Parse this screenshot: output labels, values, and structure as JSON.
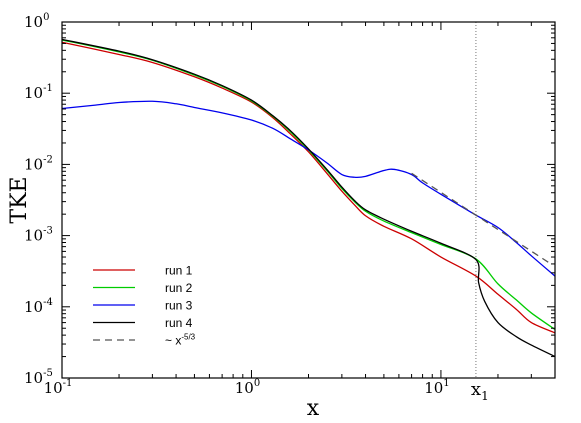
{
  "chart_data": {
    "type": "line",
    "title": "",
    "xlabel": "x",
    "ylabel": "TKE",
    "xscale": "log",
    "yscale": "log",
    "xlim": [
      0.1,
      40
    ],
    "ylim": [
      1e-05,
      1
    ],
    "grid": false,
    "legend_position": "bottom-left",
    "x_ticks": [
      {
        "value": 0.1,
        "base": "10",
        "exp": "-1"
      },
      {
        "value": 1,
        "base": "10",
        "exp": "0"
      },
      {
        "value": 10,
        "base": "10",
        "exp": "1"
      }
    ],
    "y_ticks": [
      {
        "value": 1,
        "base": "10",
        "exp": "0"
      },
      {
        "value": 0.1,
        "base": "10",
        "exp": "-1"
      },
      {
        "value": 0.01,
        "base": "10",
        "exp": "-2"
      },
      {
        "value": 0.001,
        "base": "10",
        "exp": "-3"
      },
      {
        "value": 0.0001,
        "base": "10",
        "exp": "-4"
      },
      {
        "value": 1e-05,
        "base": "10",
        "exp": "-5"
      }
    ],
    "annotations": [
      {
        "text": "x",
        "subscript": "1",
        "x": 15.3
      }
    ],
    "series": [
      {
        "name": "run 1",
        "color": "#cc0000",
        "dash": "solid",
        "points": [
          [
            0.1,
            0.52
          ],
          [
            0.2,
            0.35
          ],
          [
            0.3,
            0.27
          ],
          [
            0.5,
            0.17
          ],
          [
            0.7,
            0.118
          ],
          [
            1.0,
            0.075
          ],
          [
            1.3,
            0.045
          ],
          [
            1.6,
            0.027
          ],
          [
            2.0,
            0.015
          ],
          [
            2.5,
            0.0075
          ],
          [
            3.0,
            0.0042
          ],
          [
            3.5,
            0.0027
          ],
          [
            4.0,
            0.0019
          ],
          [
            5.0,
            0.00135
          ],
          [
            7.0,
            0.0009
          ],
          [
            10.0,
            0.0005
          ],
          [
            15.3,
            0.00027
          ],
          [
            20.0,
            0.00015
          ],
          [
            25.0,
            9.2e-05
          ],
          [
            30.0,
            6e-05
          ],
          [
            40.0,
            4.3e-05
          ]
        ]
      },
      {
        "name": "run 2",
        "color": "#00cc00",
        "dash": "solid",
        "points": [
          [
            0.1,
            0.56
          ],
          [
            0.2,
            0.38
          ],
          [
            0.3,
            0.29
          ],
          [
            0.5,
            0.18
          ],
          [
            0.7,
            0.125
          ],
          [
            1.0,
            0.078
          ],
          [
            1.3,
            0.047
          ],
          [
            1.6,
            0.029
          ],
          [
            2.0,
            0.016
          ],
          [
            2.5,
            0.0082
          ],
          [
            3.0,
            0.0046
          ],
          [
            3.5,
            0.003
          ],
          [
            4.0,
            0.0022
          ],
          [
            5.0,
            0.0016
          ],
          [
            7.0,
            0.0011
          ],
          [
            10.0,
            0.00075
          ],
          [
            15.3,
            0.00047
          ],
          [
            20.0,
            0.00021
          ],
          [
            25.0,
            0.000125
          ],
          [
            30.0,
            8.2e-05
          ],
          [
            40.0,
            4.8e-05
          ]
        ]
      },
      {
        "name": "run 3",
        "color": "#0000ee",
        "dash": "solid",
        "points": [
          [
            0.1,
            0.061
          ],
          [
            0.15,
            0.068
          ],
          [
            0.2,
            0.074
          ],
          [
            0.3,
            0.077
          ],
          [
            0.4,
            0.071
          ],
          [
            0.5,
            0.063
          ],
          [
            0.7,
            0.053
          ],
          [
            1.0,
            0.042
          ],
          [
            1.3,
            0.032
          ],
          [
            1.6,
            0.023
          ],
          [
            2.0,
            0.016
          ],
          [
            2.5,
            0.0105
          ],
          [
            3.0,
            0.0072
          ],
          [
            3.5,
            0.0066
          ],
          [
            4.0,
            0.0068
          ],
          [
            5.0,
            0.0082
          ],
          [
            5.7,
            0.0085
          ],
          [
            7.0,
            0.0072
          ],
          [
            8.0,
            0.0055
          ],
          [
            10.0,
            0.0038
          ],
          [
            15.0,
            0.002
          ],
          [
            20.0,
            0.0013
          ],
          [
            25.0,
            0.0008
          ],
          [
            30.0,
            0.00052
          ],
          [
            40.0,
            0.00027
          ]
        ]
      },
      {
        "name": "run 4",
        "color": "#000000",
        "dash": "solid",
        "points": [
          [
            0.1,
            0.57
          ],
          [
            0.2,
            0.39
          ],
          [
            0.3,
            0.295
          ],
          [
            0.5,
            0.185
          ],
          [
            0.7,
            0.128
          ],
          [
            1.0,
            0.08
          ],
          [
            1.3,
            0.048
          ],
          [
            1.6,
            0.03
          ],
          [
            2.0,
            0.0165
          ],
          [
            2.5,
            0.0085
          ],
          [
            3.0,
            0.0048
          ],
          [
            3.5,
            0.0031
          ],
          [
            4.0,
            0.0023
          ],
          [
            5.0,
            0.0017
          ],
          [
            7.0,
            0.00115
          ],
          [
            10.0,
            0.00078
          ],
          [
            15.3,
            0.00046
          ],
          [
            15.8,
            0.00022
          ],
          [
            17.0,
            0.00012
          ],
          [
            20.0,
            6e-05
          ],
          [
            25.0,
            3.8e-05
          ],
          [
            30.0,
            2.9e-05
          ],
          [
            40.0,
            2e-05
          ]
        ]
      },
      {
        "name": "~ x",
        "name_superscript": "-5/3",
        "color": "#555555",
        "dash": "dashed",
        "points": [
          [
            7.0,
            0.0075
          ],
          [
            37.0,
            0.00042
          ]
        ]
      }
    ]
  }
}
